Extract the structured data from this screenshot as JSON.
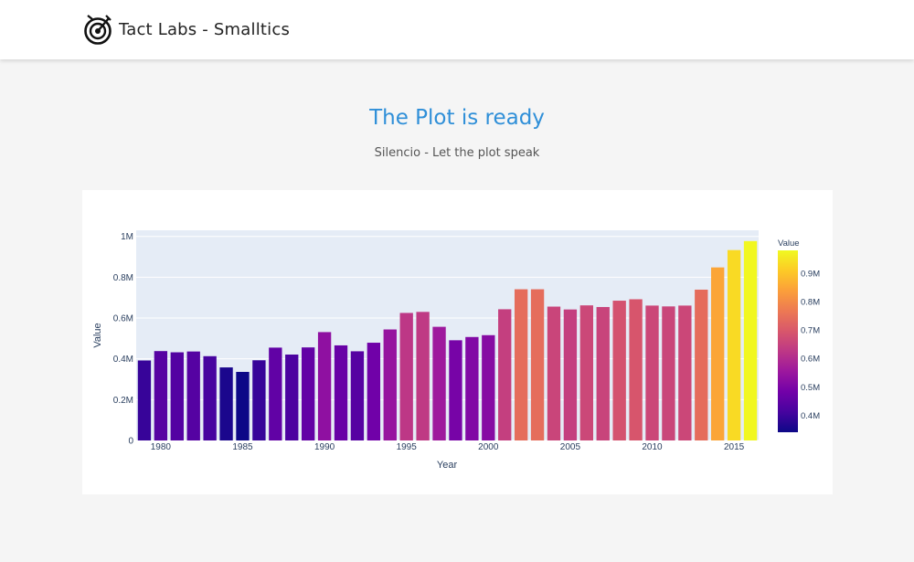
{
  "nav": {
    "brand": "Tact Labs - Smalltics",
    "logo_icon": "target-logo-icon"
  },
  "hero": {
    "title": "The Plot is ready",
    "subtitle": "Silencio - Let the plot speak"
  },
  "colors": {
    "title": "#2f8fd8",
    "plot_bg": "#e5ecf6",
    "background": "#f5f5f5"
  },
  "chart_data": {
    "type": "bar",
    "xlabel": "Year",
    "ylabel": "Value",
    "xlim": [
      1978.5,
      2016.5
    ],
    "ylim": [
      0,
      1030000
    ],
    "x_ticks": [
      1980,
      1985,
      1990,
      1995,
      2000,
      2005,
      2010,
      2015
    ],
    "y_ticks": [
      0,
      200000,
      400000,
      600000,
      800000,
      1000000
    ],
    "y_tick_labels": [
      "0",
      "0.2M",
      "0.4M",
      "0.6M",
      "0.8M",
      "1M"
    ],
    "grid": true,
    "colorbar": {
      "title": "Value",
      "colorscale": "plasma",
      "range": [
        340000,
        980000
      ],
      "ticks": [
        400000,
        500000,
        600000,
        700000,
        800000,
        900000
      ],
      "tick_labels": [
        "0.4M",
        "0.5M",
        "0.6M",
        "0.7M",
        "0.8M",
        "0.9M"
      ]
    },
    "x": [
      1979,
      1980,
      1981,
      1982,
      1983,
      1984,
      1985,
      1986,
      1987,
      1988,
      1989,
      1990,
      1991,
      1992,
      1993,
      1994,
      1995,
      1996,
      1997,
      1998,
      1999,
      2000,
      2001,
      2002,
      2003,
      2004,
      2005,
      2006,
      2007,
      2008,
      2009,
      2010,
      2011,
      2012,
      2013,
      2014,
      2015,
      2016
    ],
    "values": [
      392000,
      438000,
      432000,
      436000,
      413000,
      358000,
      336000,
      393000,
      455000,
      421000,
      456000,
      531000,
      466000,
      437000,
      479000,
      544000,
      625000,
      630000,
      557000,
      491000,
      507000,
      516000,
      643000,
      741000,
      741000,
      656000,
      642000,
      662000,
      654000,
      685000,
      692000,
      661000,
      657000,
      661000,
      739000,
      848000,
      933000,
      977000
    ]
  }
}
